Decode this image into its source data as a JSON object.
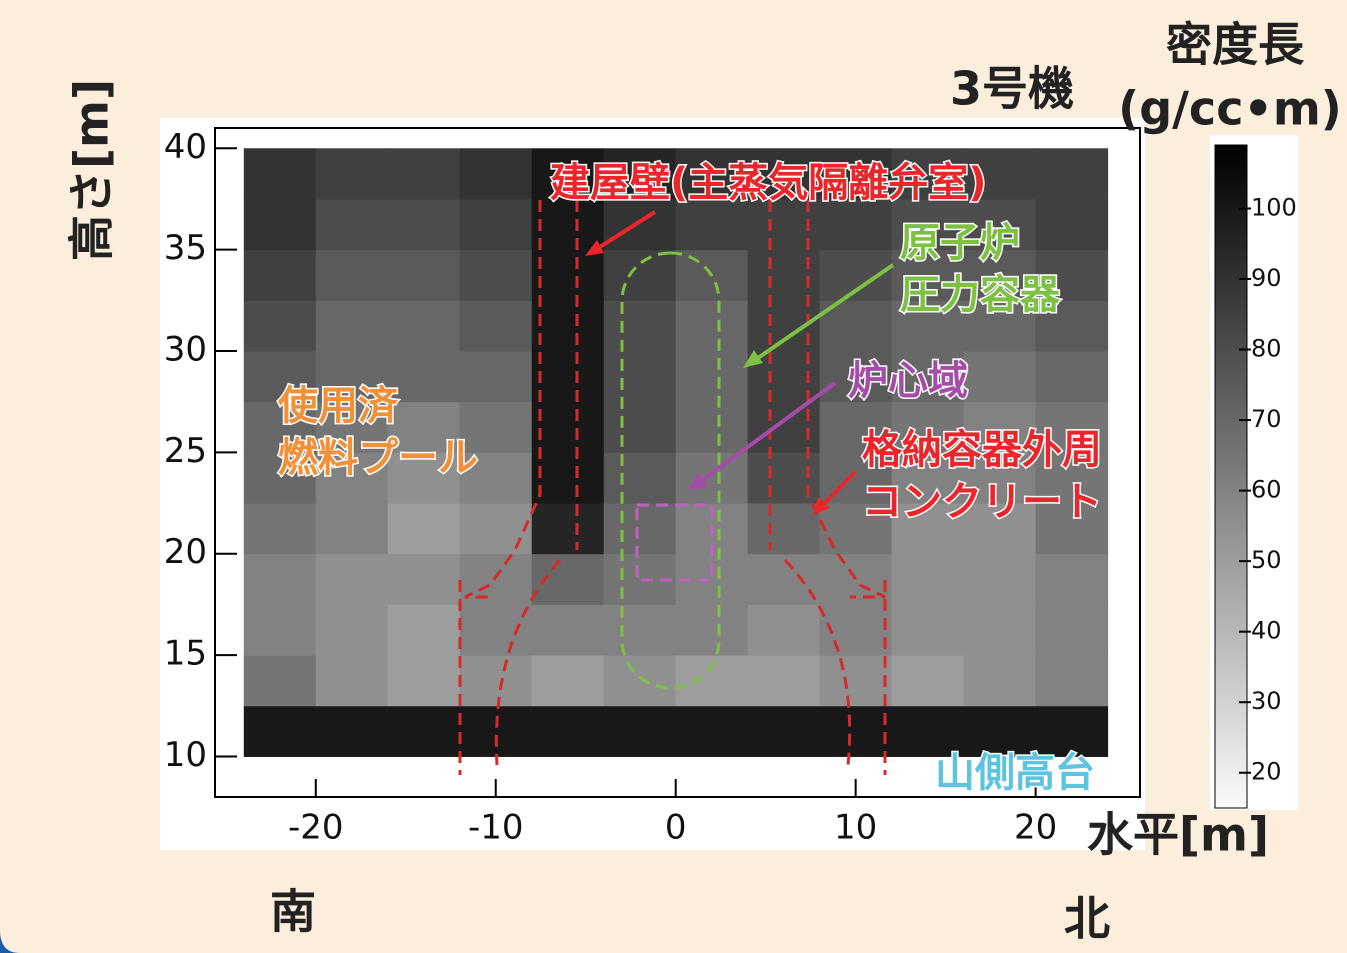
{
  "chart_data": {
    "type": "heatmap",
    "title": "3号機",
    "x_label": "水平[m]",
    "y_label": "高さ[m]",
    "colorbar_label": [
      "密度長",
      "(g/cc•m)"
    ],
    "x_bins": [
      -24,
      -20,
      -16,
      -12,
      -8,
      -4,
      0,
      4,
      8,
      12,
      16,
      20,
      24
    ],
    "y_bins": [
      10,
      12.5,
      15,
      17.5,
      20,
      22.5,
      25,
      27.5,
      30,
      32.5,
      35,
      37.5,
      40
    ],
    "values": [
      [
        100,
        100,
        100,
        100,
        100,
        100,
        100,
        100,
        100,
        100,
        100,
        100
      ],
      [
        65,
        55,
        50,
        55,
        50,
        55,
        50,
        50,
        55,
        50,
        55,
        60
      ],
      [
        60,
        55,
        50,
        60,
        60,
        60,
        60,
        55,
        60,
        55,
        55,
        60
      ],
      [
        60,
        55,
        55,
        60,
        70,
        65,
        60,
        60,
        60,
        55,
        55,
        60
      ],
      [
        65,
        60,
        50,
        55,
        95,
        70,
        60,
        70,
        65,
        55,
        55,
        65
      ],
      [
        70,
        60,
        55,
        60,
        100,
        75,
        65,
        80,
        70,
        60,
        60,
        65
      ],
      [
        70,
        65,
        60,
        65,
        100,
        80,
        70,
        85,
        70,
        65,
        60,
        65
      ],
      [
        75,
        70,
        70,
        70,
        100,
        80,
        70,
        85,
        75,
        70,
        65,
        70
      ],
      [
        80,
        70,
        70,
        75,
        100,
        80,
        70,
        85,
        75,
        70,
        70,
        75
      ],
      [
        85,
        75,
        75,
        80,
        100,
        85,
        75,
        85,
        80,
        75,
        75,
        80
      ],
      [
        90,
        80,
        80,
        85,
        100,
        90,
        85,
        85,
        85,
        80,
        80,
        85
      ],
      [
        90,
        85,
        85,
        90,
        100,
        95,
        90,
        90,
        90,
        85,
        85,
        85
      ]
    ],
    "xlim": [
      -25.6,
      25.8
    ],
    "ylim": [
      8,
      41
    ],
    "xticks": [
      -20,
      -10,
      0,
      10,
      20
    ],
    "yticks": [
      10,
      15,
      20,
      25,
      30,
      35,
      40
    ],
    "zlim": [
      15,
      109
    ],
    "zticks": [
      20,
      30,
      40,
      50,
      60,
      70,
      80,
      90,
      100
    ],
    "colormap": "gray_reversed",
    "direction_labels": [
      "南",
      "北"
    ],
    "annotations": [
      {
        "lines": [
          "建屋壁(主蒸気隔離弁室)"
        ],
        "color": "#e8262b"
      },
      {
        "lines": [
          "原子炉",
          "圧力容器"
        ],
        "color": "#7cc144"
      },
      {
        "lines": [
          "炉心域"
        ],
        "color": "#a54ca8"
      },
      {
        "lines": [
          "格納容器外周",
          "コンクリート"
        ],
        "color": "#e8262b"
      },
      {
        "lines": [
          "使用済",
          "燃料プール"
        ],
        "color": "#f0913a"
      },
      {
        "lines": [
          "山側高台"
        ],
        "color": "#5ec3df"
      }
    ]
  }
}
